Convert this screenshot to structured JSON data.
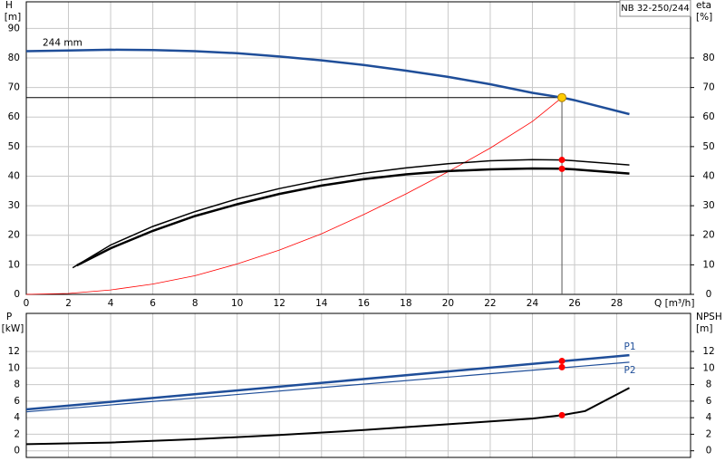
{
  "chart_data": [
    {
      "type": "line",
      "title": "NB 32-250/244",
      "ylabel": "H",
      "yunit": "[m]",
      "y2label": "eta",
      "y2unit": "[%]",
      "xlabel": "Q [m³/h]",
      "xlim": [
        0,
        31.5
      ],
      "xticks": [
        0,
        2,
        4,
        6,
        8,
        10,
        12,
        14,
        16,
        18,
        20,
        22,
        24,
        26,
        28
      ],
      "ylim": [
        0,
        99
      ],
      "yticks": [
        0,
        10,
        20,
        30,
        40,
        50,
        60,
        70,
        80,
        90
      ],
      "y2lim": [
        0,
        99
      ],
      "y2ticks": [
        0,
        10,
        20,
        30,
        40,
        50,
        60,
        70,
        80
      ],
      "grid": true,
      "show_xtick_labels": true,
      "series": [
        {
          "name": "244 mm",
          "color": "#1f4e99",
          "width": 2.5,
          "x": [
            0,
            2,
            4,
            6,
            8,
            10,
            12,
            14,
            16,
            18,
            20,
            22,
            24,
            25.4,
            26,
            28.6
          ],
          "values": [
            82.3,
            82.5,
            82.8,
            82.7,
            82.3,
            81.6,
            80.5,
            79.2,
            77.6,
            75.7,
            73.6,
            71.1,
            68.2,
            66.6,
            65.7,
            61
          ]
        },
        {
          "color": "#ff0000",
          "width": 0.8,
          "axis": "y2",
          "x": [
            0,
            2,
            4,
            6,
            8,
            10,
            12,
            14,
            16,
            18,
            20,
            22,
            24,
            25.4
          ],
          "values": [
            0,
            0.3,
            1.5,
            3.5,
            6.3,
            10.3,
            15,
            20.5,
            27,
            34,
            41.5,
            49.5,
            58.5,
            66.6
          ]
        },
        {
          "color": "#000000",
          "width": 1.5,
          "axis": "y2",
          "x": [
            2.2,
            4,
            6,
            8,
            10,
            12,
            14,
            16,
            18,
            20,
            22,
            24,
            25.4,
            26,
            28.6
          ],
          "values": [
            9,
            16.7,
            23,
            28,
            32.3,
            35.8,
            38.7,
            41,
            42.8,
            44.2,
            45.2,
            45.6,
            45.5,
            45.2,
            43.8
          ]
        },
        {
          "color": "#000000",
          "width": 2.5,
          "axis": "y2",
          "x": [
            2.4,
            4,
            6,
            8,
            10,
            12,
            14,
            16,
            18,
            20,
            22,
            24,
            25.4,
            26,
            28.6
          ],
          "values": [
            9.8,
            15.6,
            21.5,
            26.5,
            30.5,
            34,
            36.8,
            39,
            40.6,
            41.7,
            42.3,
            42.6,
            42.5,
            42.3,
            40.9
          ]
        }
      ],
      "duty_point": {
        "x": 25.4,
        "y": 66.6,
        "color": "#ffcc00"
      },
      "points": [
        {
          "x": 25.4,
          "y": 45.5,
          "color": "#ff0000",
          "axis": "y2"
        },
        {
          "x": 25.4,
          "y": 42.5,
          "color": "#ff0000",
          "axis": "y2"
        }
      ]
    },
    {
      "type": "line",
      "ylabel": "P",
      "yunit": "[kW]",
      "y2label": "NPSH",
      "y2unit": "[m]",
      "xlim": [
        0,
        31.5
      ],
      "xticks": [
        0,
        2,
        4,
        6,
        8,
        10,
        12,
        14,
        16,
        18,
        20,
        22,
        24,
        26,
        28
      ],
      "ylim": [
        -0.8,
        16.6
      ],
      "yticks": [
        0,
        2,
        4,
        6,
        8,
        10,
        12
      ],
      "y2lim": [
        -0.8,
        16.6
      ],
      "y2ticks": [
        0,
        2,
        4,
        6,
        8,
        10,
        12
      ],
      "grid": true,
      "show_xtick_labels": false,
      "series": [
        {
          "name": "P1",
          "color": "#1f4e99",
          "width": 2.5,
          "x": [
            0,
            28.6
          ],
          "values": [
            5.0,
            11.55
          ]
        },
        {
          "name": "P2",
          "color": "#1f4e99",
          "width": 1.2,
          "x": [
            0,
            28.6
          ],
          "values": [
            4.7,
            10.7
          ]
        },
        {
          "color": "#000000",
          "width": 2,
          "axis": "y2",
          "x": [
            0,
            4,
            8,
            12,
            16,
            20,
            24,
            25.4,
            26.5,
            28.6
          ],
          "values": [
            0.8,
            1.0,
            1.4,
            1.9,
            2.5,
            3.2,
            3.9,
            4.3,
            4.8,
            7.6
          ]
        }
      ],
      "points": [
        {
          "x": 25.4,
          "y": 10.85,
          "color": "#ff0000"
        },
        {
          "x": 25.4,
          "y": 10.1,
          "color": "#ff0000"
        },
        {
          "x": 25.4,
          "y": 4.3,
          "color": "#ff0000",
          "axis": "y2"
        }
      ]
    }
  ]
}
